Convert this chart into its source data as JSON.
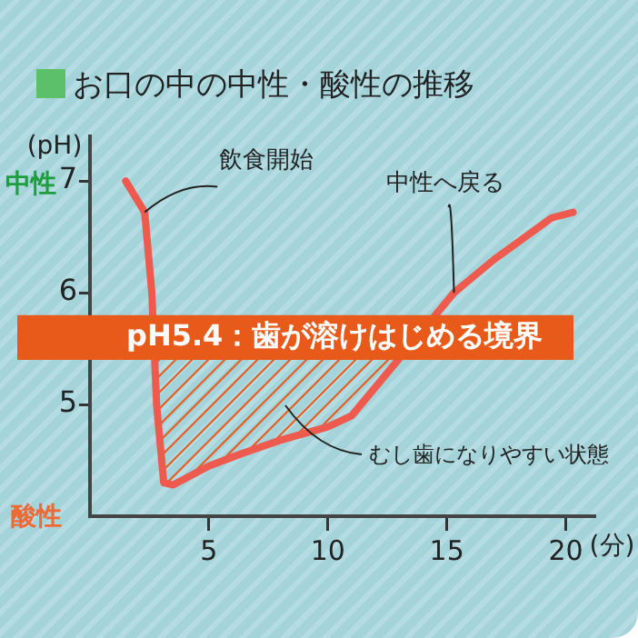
{
  "chart_data": {
    "type": "line",
    "title": "お口の中の中性・酸性の推移",
    "ylabel": "(pH)",
    "xlabel": "(分)",
    "x": [
      1.5,
      2.3,
      2.6,
      2.8,
      3.1,
      3.5,
      5,
      6.5,
      8,
      10,
      11,
      15.3,
      17,
      19.4,
      20.3
    ],
    "values": [
      7.0,
      6.72,
      6.0,
      5.0,
      4.3,
      4.28,
      4.45,
      4.57,
      4.68,
      4.8,
      4.9,
      6.0,
      6.3,
      6.67,
      6.72
    ],
    "color": "#ee5a4e",
    "marker": "none",
    "line_style": "solid",
    "grid": false,
    "xlim": [
      0,
      21.2
    ],
    "xticks": [
      5,
      10,
      15,
      20
    ],
    "ylim": [
      4,
      7.4
    ],
    "yticks": [
      5,
      6,
      7
    ],
    "bands": [
      {
        "axis": "y",
        "from": 5.4,
        "to": 5.8,
        "label": "pH5.4：歯が溶けはじめる境界",
        "color": "#e85a1a"
      }
    ],
    "annotations": [
      {
        "text": "飲食開始",
        "x": 2.3,
        "y": 6.72
      },
      {
        "text": "中性へ戻る",
        "x": 15.3,
        "y": 6.0
      },
      "むし歯になりやすい状態",
      "中性",
      "酸性"
    ]
  }
}
